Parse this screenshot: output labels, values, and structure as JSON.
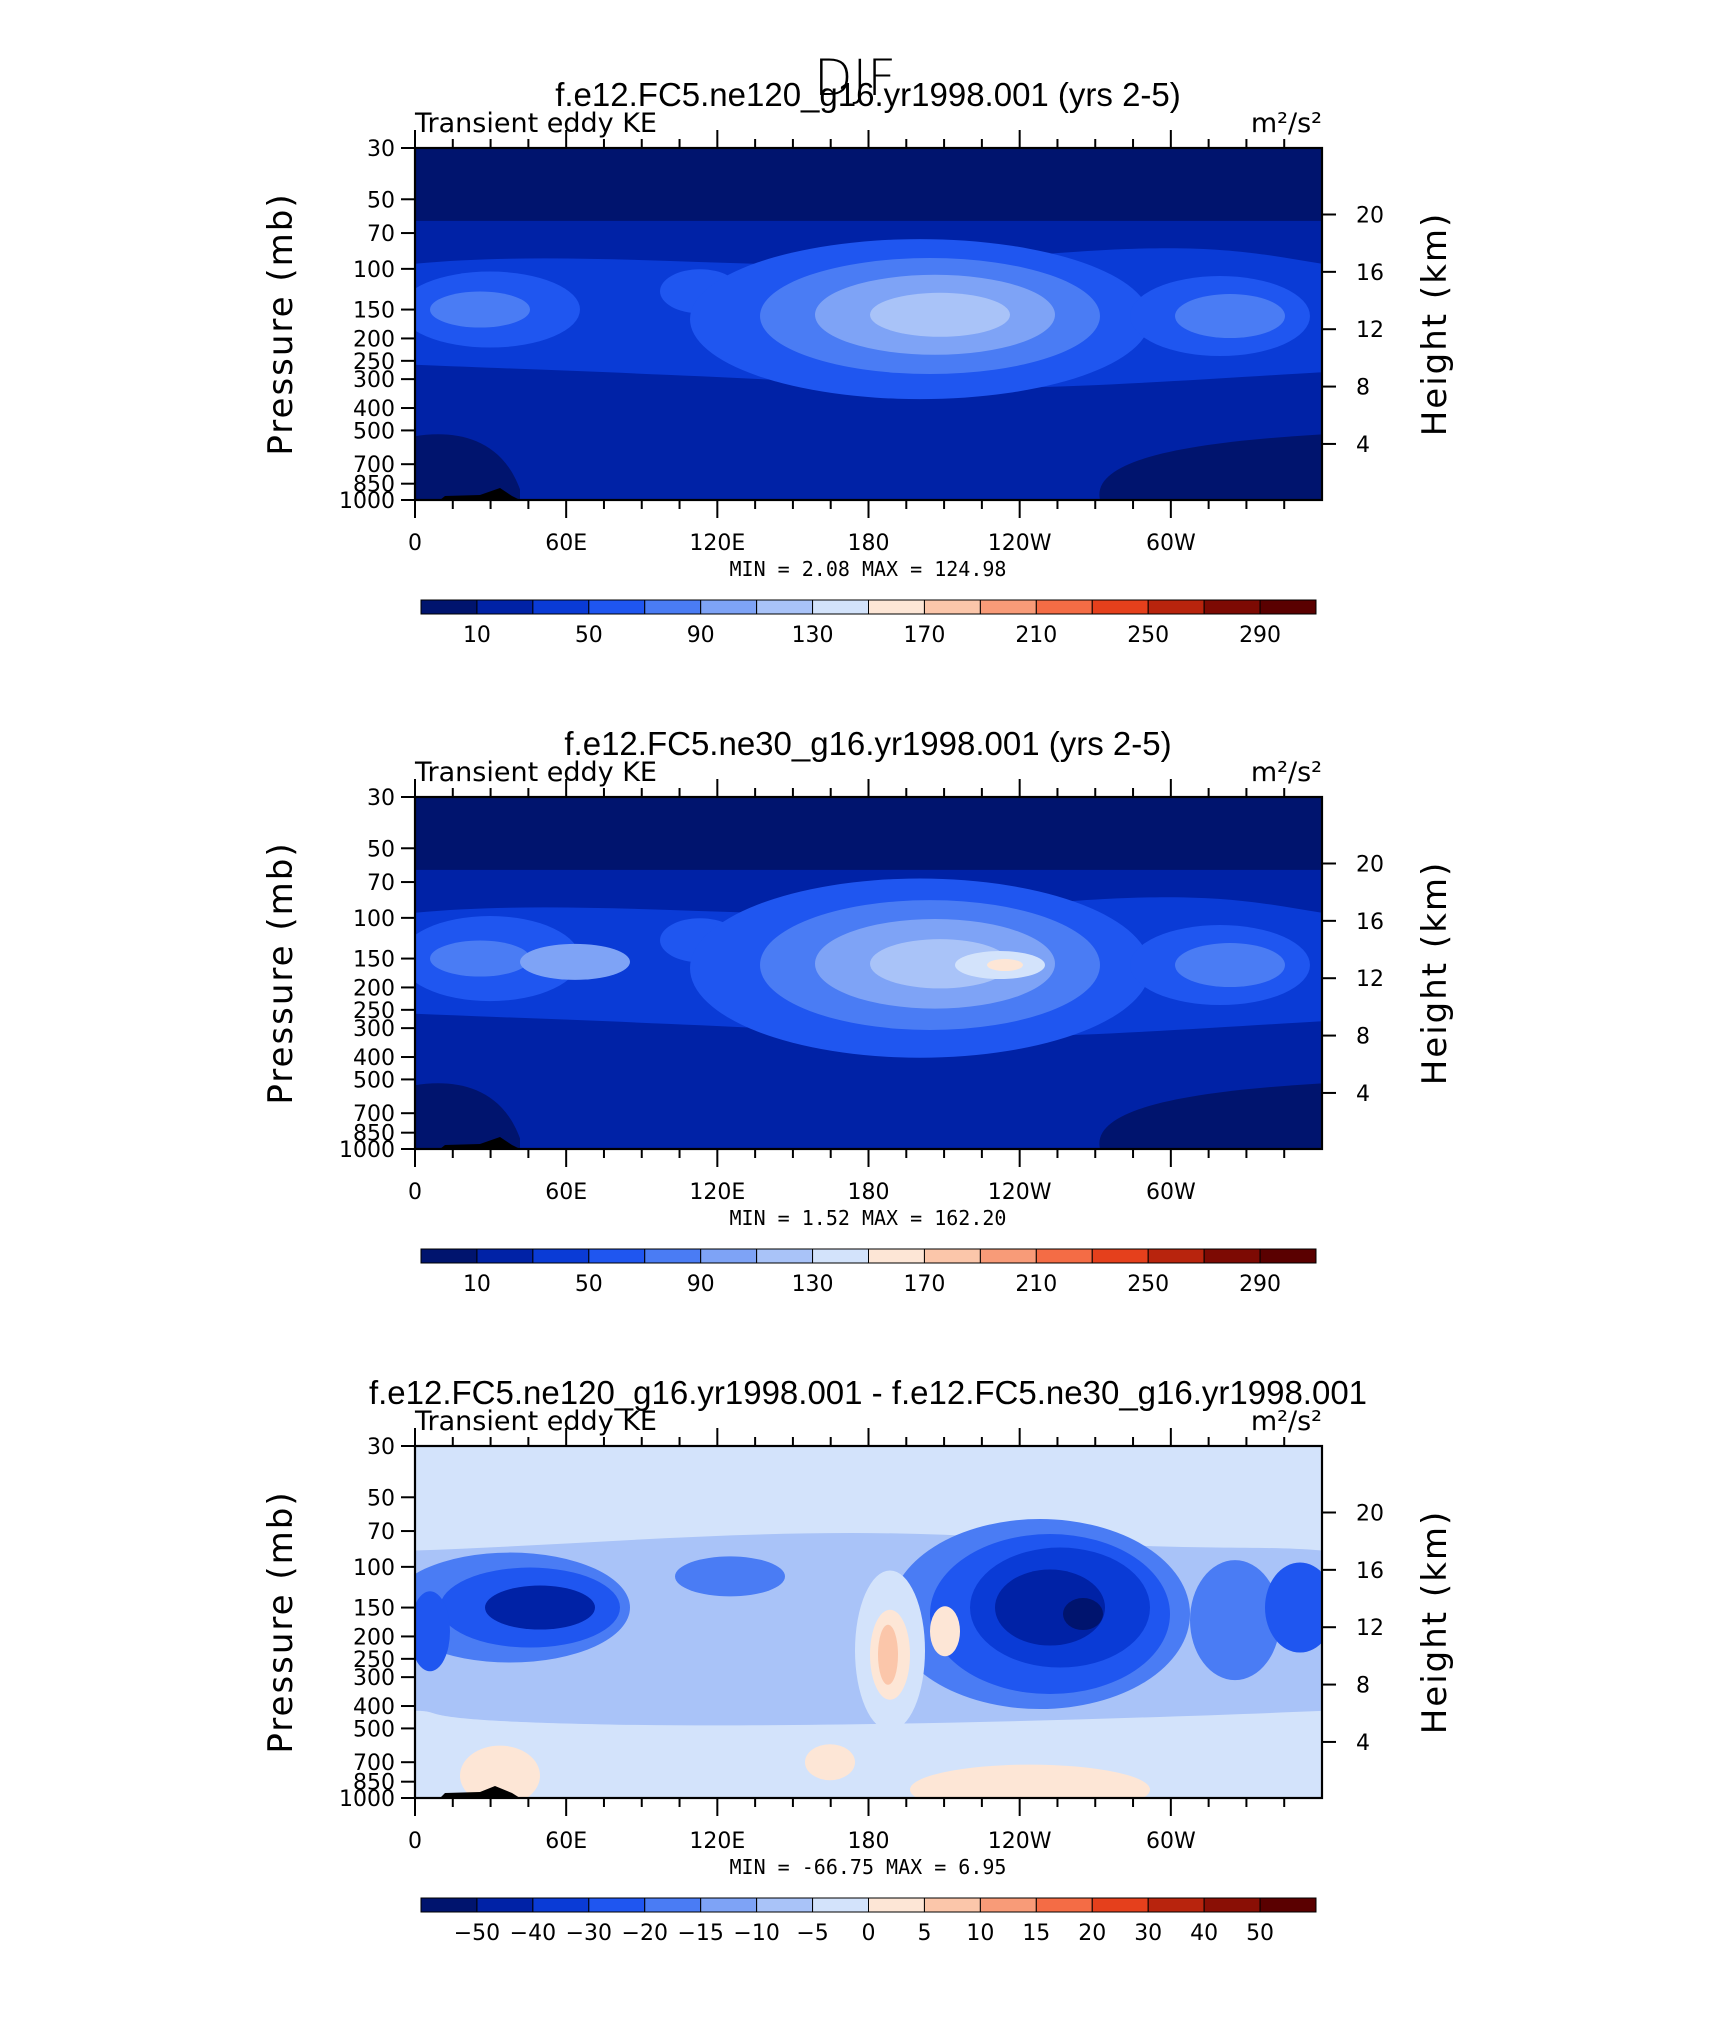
{
  "figure_title": "DJF",
  "chart_data": [
    {
      "type": "heatmap",
      "title": "f.e12.FC5.ne120_g16.yr1998.001 (yrs 2-5)",
      "left_label": "Transient eddy KE",
      "right_label": "m²/s²",
      "ylabel": "Pressure (mb)",
      "ylabel_right": "Height (km)",
      "x_ticks": [
        "0",
        "60E",
        "120E",
        "180",
        "120W",
        "60W"
      ],
      "y_ticks": [
        "30",
        "50",
        "70",
        "100",
        "150",
        "200",
        "250",
        "300",
        "400",
        "500",
        "700",
        "850",
        "1000"
      ],
      "y_ticks_right": [
        "20",
        "16",
        "12",
        "8",
        "4"
      ],
      "minmax_text": "MIN =    2.08   MAX =  124.98",
      "colorbar_labels": [
        "10",
        "50",
        "90",
        "130",
        "170",
        "210",
        "250",
        "290"
      ],
      "colorbar_levels": [
        10,
        30,
        50,
        70,
        90,
        110,
        130,
        150,
        170,
        190,
        210,
        230,
        250,
        270,
        290
      ],
      "min": 2.08,
      "max": 124.98
    },
    {
      "type": "heatmap",
      "title": "f.e12.FC5.ne30_g16.yr1998.001 (yrs 2-5)",
      "left_label": "Transient eddy KE",
      "right_label": "m²/s²",
      "ylabel": "Pressure (mb)",
      "ylabel_right": "Height (km)",
      "x_ticks": [
        "0",
        "60E",
        "120E",
        "180",
        "120W",
        "60W"
      ],
      "y_ticks": [
        "30",
        "50",
        "70",
        "100",
        "150",
        "200",
        "250",
        "300",
        "400",
        "500",
        "700",
        "850",
        "1000"
      ],
      "y_ticks_right": [
        "20",
        "16",
        "12",
        "8",
        "4"
      ],
      "minmax_text": "MIN =    1.52   MAX =  162.20",
      "colorbar_labels": [
        "10",
        "50",
        "90",
        "130",
        "170",
        "210",
        "250",
        "290"
      ],
      "colorbar_levels": [
        10,
        30,
        50,
        70,
        90,
        110,
        130,
        150,
        170,
        190,
        210,
        230,
        250,
        270,
        290
      ],
      "min": 1.52,
      "max": 162.2
    },
    {
      "type": "heatmap",
      "title": "f.e12.FC5.ne120_g16.yr1998.001 - f.e12.FC5.ne30_g16.yr1998.001",
      "left_label": "Transient eddy KE",
      "right_label": "m²/s²",
      "ylabel": "Pressure (mb)",
      "ylabel_right": "Height (km)",
      "x_ticks": [
        "0",
        "60E",
        "120E",
        "180",
        "120W",
        "60W"
      ],
      "y_ticks": [
        "30",
        "50",
        "70",
        "100",
        "150",
        "200",
        "250",
        "300",
        "400",
        "500",
        "700",
        "850",
        "1000"
      ],
      "y_ticks_right": [
        "20",
        "16",
        "12",
        "8",
        "4"
      ],
      "minmax_text": "MIN =  -66.75   MAX =    6.95",
      "colorbar_labels": [
        "-50",
        "-40",
        "-30",
        "-20",
        "-15",
        "-10",
        "-5",
        "0",
        "5",
        "10",
        "15",
        "20",
        "30",
        "40",
        "50"
      ],
      "colorbar_levels": [
        -50,
        -40,
        -30,
        -20,
        -15,
        -10,
        -5,
        0,
        5,
        10,
        15,
        20,
        30,
        40,
        50
      ],
      "min": -66.75,
      "max": 6.95
    }
  ],
  "colors": {
    "abs_scale": [
      "#00146e",
      "#0022a6",
      "#0a3bd6",
      "#1f56f0",
      "#4a7cf4",
      "#7ea3f6",
      "#a9c3f8",
      "#d3e3fb",
      "#fde6d6",
      "#fbc6aa",
      "#f89b78",
      "#f46c45",
      "#e5401c",
      "#b8240d",
      "#7d0a03",
      "#5a0000"
    ],
    "diff_scale": [
      "#00146e",
      "#0022a6",
      "#0a3bd6",
      "#1f56f0",
      "#4a7cf4",
      "#7ea3f6",
      "#a9c3f8",
      "#d3e3fb",
      "#fde6d6",
      "#fbc6aa",
      "#f89b78",
      "#f46c45",
      "#e5401c",
      "#b8240d",
      "#8a0f05",
      "#5a0000"
    ],
    "topography": "#000000"
  }
}
